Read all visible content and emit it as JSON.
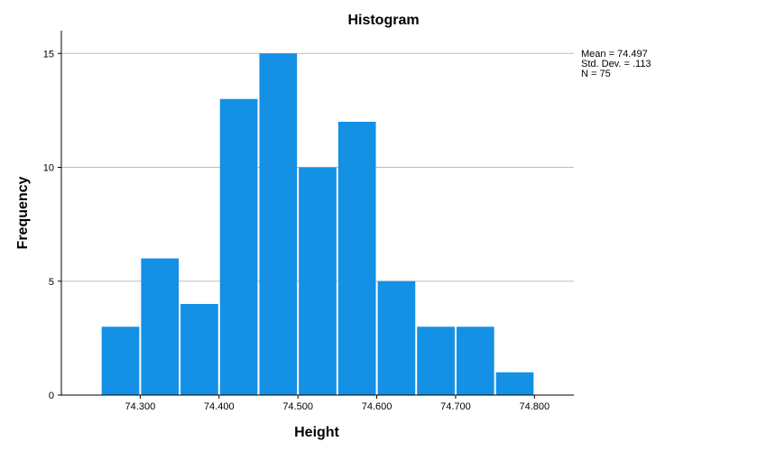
{
  "chart_data": {
    "type": "bar",
    "title": "Histogram",
    "xlabel": "Height",
    "ylabel": "Frequency",
    "bin_edges": [
      74.25,
      74.3,
      74.35,
      74.4,
      74.45,
      74.5,
      74.55,
      74.6,
      74.65,
      74.7,
      74.75,
      74.8
    ],
    "values": [
      3,
      6,
      4,
      13,
      15,
      10,
      12,
      5,
      3,
      3,
      1
    ],
    "xlim": [
      74.2,
      74.85
    ],
    "ylim": [
      0,
      16
    ],
    "x_ticks": [
      {
        "value": 74.3,
        "label": "74.300"
      },
      {
        "value": 74.4,
        "label": "74.400"
      },
      {
        "value": 74.5,
        "label": "74.500"
      },
      {
        "value": 74.6,
        "label": "74.600"
      },
      {
        "value": 74.7,
        "label": "74.700"
      },
      {
        "value": 74.8,
        "label": "74.800"
      }
    ],
    "y_ticks": [
      {
        "value": 0,
        "label": "0"
      },
      {
        "value": 5,
        "label": "5"
      },
      {
        "value": 10,
        "label": "10"
      },
      {
        "value": 15,
        "label": "15"
      }
    ],
    "grid": true,
    "bar_color": "#1490e5",
    "legend_position": "top-right",
    "stats": {
      "mean": "Mean = 74.497",
      "std_dev": "Std. Dev. = .113",
      "n": "N = 75"
    }
  }
}
